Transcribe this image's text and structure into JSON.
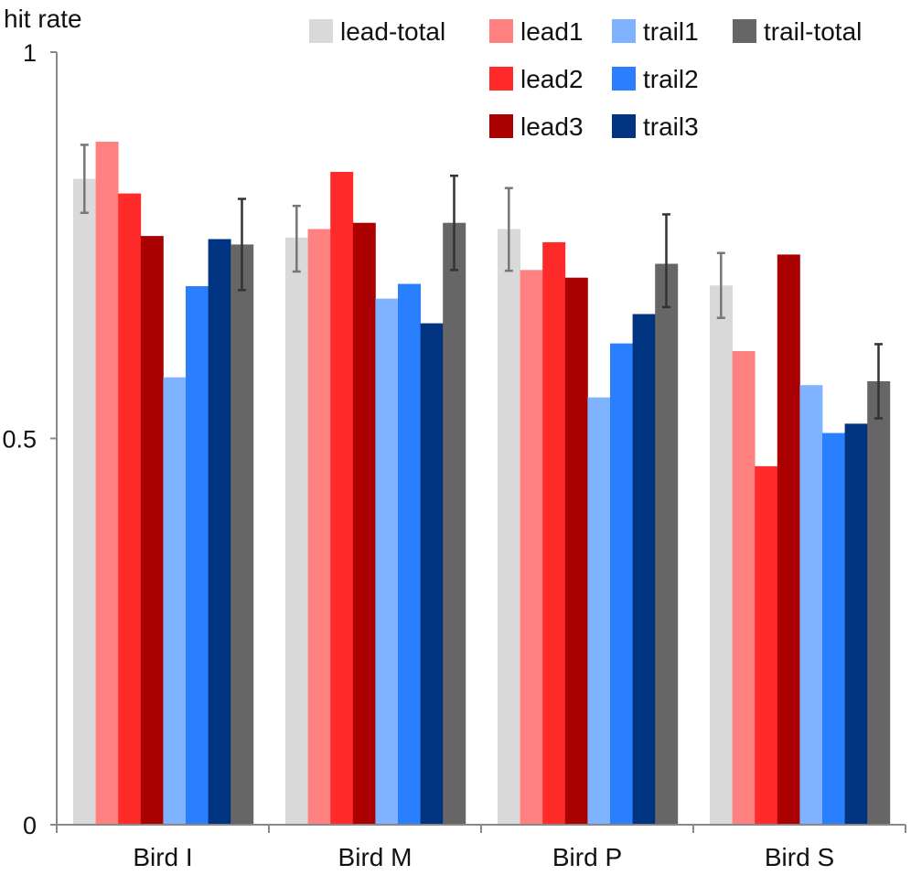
{
  "chart_data": {
    "type": "bar",
    "title": "",
    "xlabel": "",
    "ylabel": "hit rate",
    "ylim": [
      0,
      1
    ],
    "yticks": [
      {
        "value": 0,
        "label": "0"
      },
      {
        "value": 0.5,
        "label": "0.5"
      },
      {
        "value": 1,
        "label": "1"
      }
    ],
    "grid": false,
    "legend_position": "top-right",
    "categories": [
      "Bird I",
      "Bird M",
      "Bird P",
      "Bird S"
    ],
    "series": [
      {
        "name": "lead-total",
        "color": "#d9d9d9",
        "values": [
          0.836,
          0.76,
          0.771,
          0.698
        ],
        "error": [
          [
            0.792,
            0.88
          ],
          [
            0.716,
            0.801
          ],
          [
            0.717,
            0.824
          ],
          [
            0.656,
            0.74
          ]
        ],
        "error_color": "#777777"
      },
      {
        "name": "lead1",
        "color": "#ff8080",
        "values": [
          0.884,
          0.771,
          0.718,
          0.613
        ]
      },
      {
        "name": "lead2",
        "color": "#ff2a2a",
        "values": [
          0.817,
          0.845,
          0.754,
          0.464
        ]
      },
      {
        "name": "lead3",
        "color": "#aa0000",
        "values": [
          0.762,
          0.779,
          0.708,
          0.738
        ]
      },
      {
        "name": "trail1",
        "color": "#80b3ff",
        "values": [
          0.579,
          0.681,
          0.553,
          0.569
        ]
      },
      {
        "name": "trail2",
        "color": "#2a7fff",
        "values": [
          0.697,
          0.7,
          0.623,
          0.507
        ]
      },
      {
        "name": "trail3",
        "color": "#003380",
        "values": [
          0.758,
          0.649,
          0.661,
          0.519
        ]
      },
      {
        "name": "trail-total",
        "color": "#666666",
        "values": [
          0.751,
          0.779,
          0.726,
          0.574
        ],
        "error": [
          [
            0.692,
            0.81
          ],
          [
            0.718,
            0.84
          ],
          [
            0.67,
            0.79
          ],
          [
            0.526,
            0.622
          ]
        ],
        "error_color": "#333333"
      }
    ],
    "legend_layout": [
      [
        "lead-total",
        "lead1",
        "trail1",
        "trail-total"
      ],
      [
        null,
        "lead2",
        "trail2",
        null
      ],
      [
        null,
        "lead3",
        "trail3",
        null
      ]
    ]
  }
}
